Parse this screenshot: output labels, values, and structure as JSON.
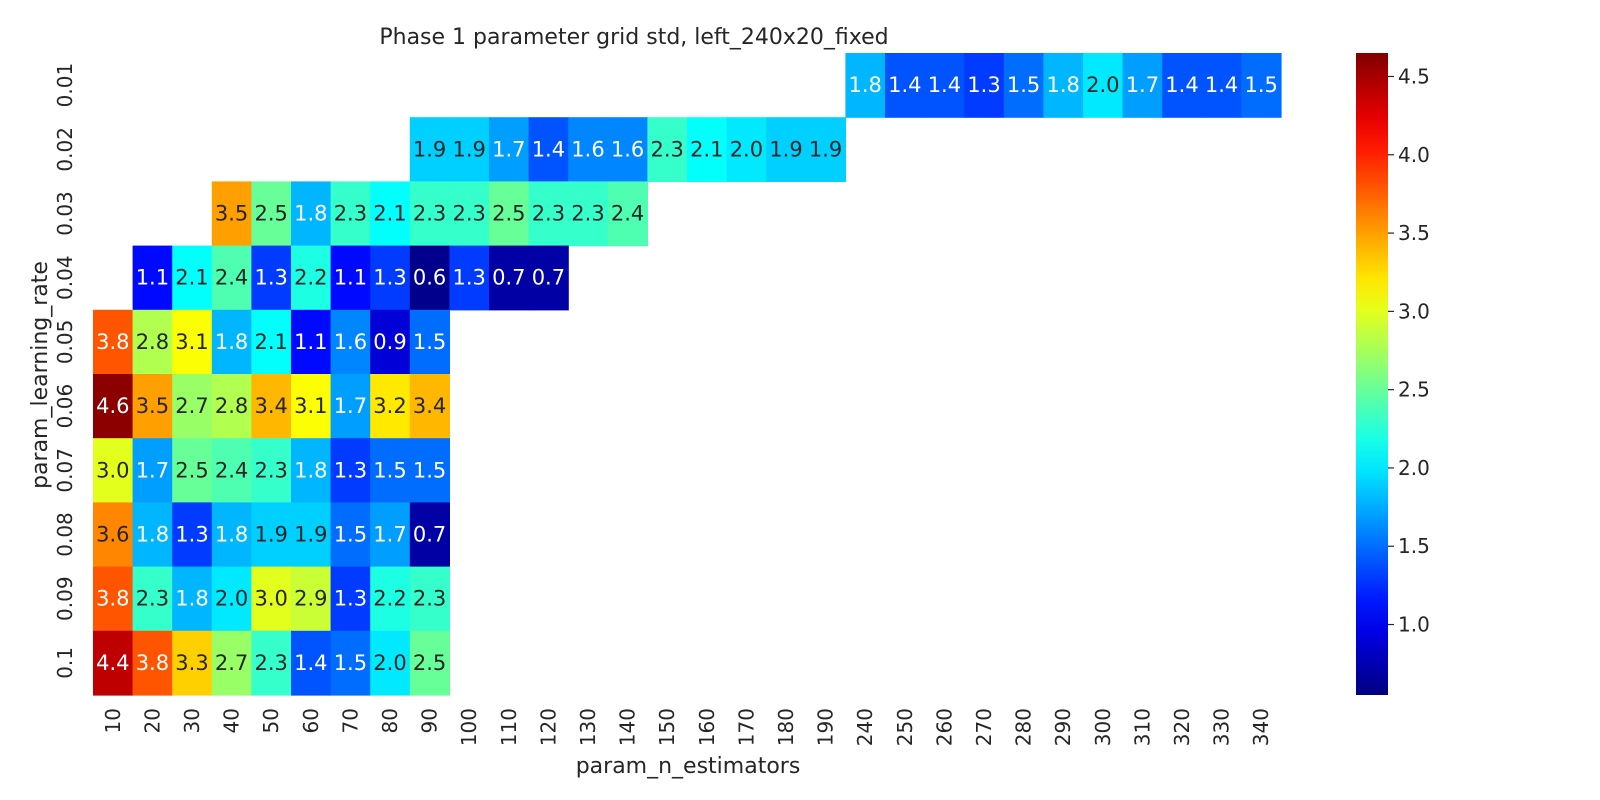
{
  "chart_data": {
    "type": "heatmap",
    "title": "Phase 1 parameter grid std, left_240x20_fixed",
    "xlabel": "param_n_estimators",
    "ylabel": "param_learning_rate",
    "x_categories": [
      "10",
      "20",
      "30",
      "40",
      "50",
      "60",
      "70",
      "80",
      "90",
      "100",
      "110",
      "120",
      "130",
      "140",
      "150",
      "160",
      "170",
      "180",
      "190",
      "240",
      "250",
      "260",
      "270",
      "280",
      "290",
      "300",
      "310",
      "320",
      "330",
      "340"
    ],
    "y_categories": [
      "0.01",
      "0.02",
      "0.03",
      "0.04",
      "0.05",
      "0.06",
      "0.07",
      "0.08",
      "0.09",
      "0.1"
    ],
    "values": [
      [
        null,
        null,
        null,
        null,
        null,
        null,
        null,
        null,
        null,
        null,
        null,
        null,
        null,
        null,
        null,
        null,
        null,
        null,
        null,
        1.8,
        1.4,
        1.4,
        1.3,
        1.5,
        1.8,
        2.0,
        1.7,
        1.4,
        1.4,
        1.5
      ],
      [
        null,
        null,
        null,
        null,
        null,
        null,
        null,
        null,
        1.9,
        1.9,
        1.7,
        1.4,
        1.6,
        1.6,
        2.3,
        2.1,
        2.0,
        1.9,
        1.9,
        null,
        null,
        null,
        null,
        null,
        null,
        null,
        null,
        null,
        null,
        null
      ],
      [
        null,
        null,
        null,
        3.5,
        2.5,
        1.8,
        2.3,
        2.1,
        2.3,
        2.3,
        2.5,
        2.3,
        2.3,
        2.4,
        null,
        null,
        null,
        null,
        null,
        null,
        null,
        null,
        null,
        null,
        null,
        null,
        null,
        null,
        null,
        null
      ],
      [
        null,
        1.1,
        2.1,
        2.4,
        1.3,
        2.2,
        1.1,
        1.3,
        0.6,
        1.3,
        0.7,
        0.7,
        null,
        null,
        null,
        null,
        null,
        null,
        null,
        null,
        null,
        null,
        null,
        null,
        null,
        null,
        null,
        null,
        null,
        null
      ],
      [
        3.8,
        2.8,
        3.1,
        1.8,
        2.1,
        1.1,
        1.6,
        0.9,
        1.5,
        null,
        null,
        null,
        null,
        null,
        null,
        null,
        null,
        null,
        null,
        null,
        null,
        null,
        null,
        null,
        null,
        null,
        null,
        null,
        null,
        null
      ],
      [
        4.6,
        3.5,
        2.7,
        2.8,
        3.4,
        3.1,
        1.7,
        3.2,
        3.4,
        null,
        null,
        null,
        null,
        null,
        null,
        null,
        null,
        null,
        null,
        null,
        null,
        null,
        null,
        null,
        null,
        null,
        null,
        null,
        null,
        null
      ],
      [
        3.0,
        1.7,
        2.5,
        2.4,
        2.3,
        1.8,
        1.3,
        1.5,
        1.5,
        null,
        null,
        null,
        null,
        null,
        null,
        null,
        null,
        null,
        null,
        null,
        null,
        null,
        null,
        null,
        null,
        null,
        null,
        null,
        null,
        null
      ],
      [
        3.6,
        1.8,
        1.3,
        1.8,
        1.9,
        1.9,
        1.5,
        1.7,
        0.7,
        null,
        null,
        null,
        null,
        null,
        null,
        null,
        null,
        null,
        null,
        null,
        null,
        null,
        null,
        null,
        null,
        null,
        null,
        null,
        null,
        null
      ],
      [
        3.8,
        2.3,
        1.8,
        2.0,
        3.0,
        2.9,
        1.3,
        2.2,
        2.3,
        null,
        null,
        null,
        null,
        null,
        null,
        null,
        null,
        null,
        null,
        null,
        null,
        null,
        null,
        null,
        null,
        null,
        null,
        null,
        null,
        null
      ],
      [
        4.4,
        3.8,
        3.3,
        2.7,
        2.3,
        1.4,
        1.5,
        2.0,
        2.5,
        null,
        null,
        null,
        null,
        null,
        null,
        null,
        null,
        null,
        null,
        null,
        null,
        null,
        null,
        null,
        null,
        null,
        null,
        null,
        null,
        null
      ]
    ],
    "colormap": "jet",
    "vmin": 0.55,
    "vmax": 4.65,
    "colorbar_ticks": [
      "1.0",
      "1.5",
      "2.0",
      "2.5",
      "3.0",
      "3.5",
      "4.0",
      "4.5"
    ],
    "grid": false,
    "legend": "colorbar right"
  }
}
